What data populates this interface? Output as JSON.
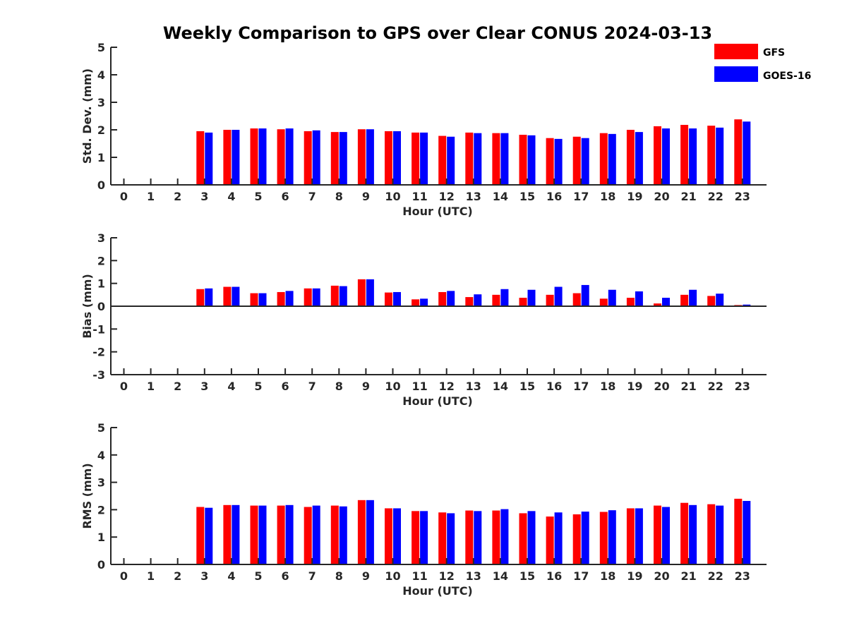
{
  "figure": {
    "title": "Weekly Comparison to GPS over Clear CONUS 2024-03-13",
    "legend": {
      "placement": "top-right",
      "entries": [
        {
          "name": "GFS",
          "color": "#ff0000"
        },
        {
          "name": "GOES-16",
          "color": "#0000ff"
        }
      ]
    }
  },
  "chart_data": [
    {
      "type": "bar",
      "xlabel": "Hour (UTC)",
      "ylabel": "Std. Dev. (mm)",
      "ylim": [
        0,
        5
      ],
      "yticks": [
        "0",
        "1",
        "2",
        "3",
        "4",
        "5"
      ],
      "categories": [
        "0",
        "1",
        "2",
        "3",
        "4",
        "5",
        "6",
        "7",
        "8",
        "9",
        "10",
        "11",
        "12",
        "13",
        "14",
        "15",
        "16",
        "17",
        "18",
        "19",
        "20",
        "21",
        "22",
        "23"
      ],
      "series": [
        {
          "name": "GFS",
          "color": "#ff0000",
          "values": [
            null,
            null,
            null,
            1.95,
            2.0,
            2.05,
            2.02,
            1.95,
            1.92,
            2.02,
            1.95,
            1.9,
            1.78,
            1.9,
            1.88,
            1.82,
            1.7,
            1.75,
            1.88,
            2.0,
            2.13,
            2.18,
            2.15,
            2.38
          ]
        },
        {
          "name": "GOES-16",
          "color": "#0000ff",
          "values": [
            null,
            null,
            null,
            1.9,
            2.0,
            2.05,
            2.05,
            1.98,
            1.92,
            2.02,
            1.95,
            1.9,
            1.75,
            1.88,
            1.88,
            1.8,
            1.67,
            1.7,
            1.85,
            1.92,
            2.05,
            2.05,
            2.08,
            2.3
          ]
        }
      ]
    },
    {
      "type": "bar",
      "xlabel": "Hour (UTC)",
      "ylabel": "Bias (mm)",
      "ylim": [
        -3,
        3
      ],
      "yticks": [
        "-3",
        "-2",
        "-1",
        "0",
        "1",
        "2",
        "3"
      ],
      "categories": [
        "0",
        "1",
        "2",
        "3",
        "4",
        "5",
        "6",
        "7",
        "8",
        "9",
        "10",
        "11",
        "12",
        "13",
        "14",
        "15",
        "16",
        "17",
        "18",
        "19",
        "20",
        "21",
        "22",
        "23"
      ],
      "series": [
        {
          "name": "GFS",
          "color": "#ff0000",
          "values": [
            null,
            null,
            null,
            0.75,
            0.85,
            0.57,
            0.62,
            0.78,
            0.9,
            1.18,
            0.6,
            0.3,
            0.62,
            0.4,
            0.5,
            0.37,
            0.5,
            0.57,
            0.33,
            0.37,
            0.12,
            0.5,
            0.45,
            0.05
          ]
        },
        {
          "name": "GOES-16",
          "color": "#0000ff",
          "values": [
            null,
            null,
            null,
            0.78,
            0.85,
            0.57,
            0.67,
            0.78,
            0.88,
            1.18,
            0.62,
            0.33,
            0.67,
            0.52,
            0.75,
            0.72,
            0.85,
            0.93,
            0.72,
            0.65,
            0.37,
            0.72,
            0.55,
            0.07
          ]
        }
      ]
    },
    {
      "type": "bar",
      "xlabel": "Hour (UTC)",
      "ylabel": "RMS (mm)",
      "ylim": [
        0,
        5
      ],
      "yticks": [
        "0",
        "1",
        "2",
        "3",
        "4",
        "5"
      ],
      "categories": [
        "0",
        "1",
        "2",
        "3",
        "4",
        "5",
        "6",
        "7",
        "8",
        "9",
        "10",
        "11",
        "12",
        "13",
        "14",
        "15",
        "16",
        "17",
        "18",
        "19",
        "20",
        "21",
        "22",
        "23"
      ],
      "series": [
        {
          "name": "GFS",
          "color": "#ff0000",
          "values": [
            null,
            null,
            null,
            2.1,
            2.17,
            2.15,
            2.15,
            2.1,
            2.15,
            2.35,
            2.05,
            1.95,
            1.9,
            1.97,
            1.97,
            1.87,
            1.75,
            1.83,
            1.92,
            2.05,
            2.15,
            2.25,
            2.2,
            2.4
          ]
        },
        {
          "name": "GOES-16",
          "color": "#0000ff",
          "values": [
            null,
            null,
            null,
            2.07,
            2.17,
            2.15,
            2.17,
            2.15,
            2.12,
            2.35,
            2.05,
            1.95,
            1.87,
            1.95,
            2.02,
            1.95,
            1.9,
            1.93,
            1.98,
            2.05,
            2.1,
            2.17,
            2.15,
            2.32
          ]
        }
      ]
    }
  ]
}
